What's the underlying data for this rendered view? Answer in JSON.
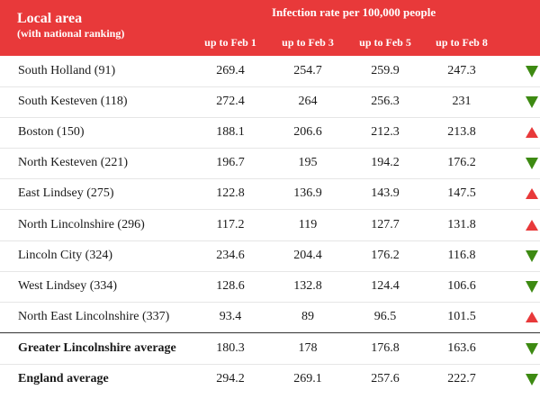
{
  "header": {
    "title": "Local area",
    "subtitle": "(with national ranking)",
    "span_label": "Infection rate per 100,000 people"
  },
  "colors": {
    "header_bg": "#e8393a",
    "down": "#3d8a12",
    "up": "#e8393a"
  },
  "chart_data": {
    "type": "table",
    "title": "Infection rate per 100,000 people",
    "columns": [
      "up to Feb 1",
      "up to Feb 3",
      "up to Feb 5",
      "up to Feb 8"
    ],
    "rows": [
      {
        "area": "South Holland (91)",
        "values": [
          "269.4",
          "254.7",
          "259.9",
          "247.3"
        ],
        "trend": "down"
      },
      {
        "area": "South Kesteven (118)",
        "values": [
          "272.4",
          "264",
          "256.3",
          "231"
        ],
        "trend": "down"
      },
      {
        "area": "Boston (150)",
        "values": [
          "188.1",
          "206.6",
          "212.3",
          "213.8"
        ],
        "trend": "up"
      },
      {
        "area": "North Kesteven (221)",
        "values": [
          "196.7",
          "195",
          "194.2",
          "176.2"
        ],
        "trend": "down"
      },
      {
        "area": "East Lindsey (275)",
        "values": [
          "122.8",
          "136.9",
          "143.9",
          "147.5"
        ],
        "trend": "up"
      },
      {
        "area": "North Lincolnshire (296)",
        "values": [
          "117.2",
          "119",
          "127.7",
          "131.8"
        ],
        "trend": "up"
      },
      {
        "area": "Lincoln City (324)",
        "values": [
          "234.6",
          "204.4",
          "176.2",
          "116.8"
        ],
        "trend": "down"
      },
      {
        "area": "West Lindsey (334)",
        "values": [
          "128.6",
          "132.8",
          "124.4",
          "106.6"
        ],
        "trend": "down"
      },
      {
        "area": "North East Lincolnshire (337)",
        "values": [
          "93.4",
          "89",
          "96.5",
          "101.5"
        ],
        "trend": "up"
      },
      {
        "area": "Greater Lincolnshire average",
        "values": [
          "180.3",
          "178",
          "176.8",
          "163.6"
        ],
        "trend": "down",
        "bold": true
      },
      {
        "area": "England average",
        "values": [
          "294.2",
          "269.1",
          "257.6",
          "222.7"
        ],
        "trend": "down",
        "bold": true
      }
    ]
  }
}
